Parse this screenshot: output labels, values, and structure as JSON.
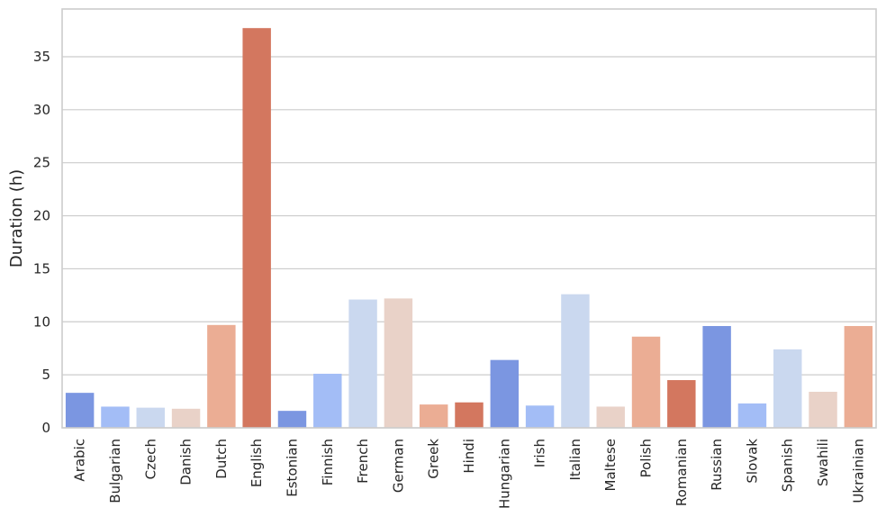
{
  "chart_data": {
    "type": "bar",
    "ylabel": "Duration (h)",
    "xlabel": "",
    "ylim": [
      0,
      39.5
    ],
    "yticks": [
      0,
      5,
      10,
      15,
      20,
      25,
      30,
      35
    ],
    "grid": "horizontal",
    "categories": [
      "Arabic",
      "Bulgarian",
      "Czech",
      "Danish",
      "Dutch",
      "English",
      "Estonian",
      "Finnish",
      "French",
      "German",
      "Greek",
      "Hindi",
      "Hungarian",
      "Irish",
      "Italian",
      "Maltese",
      "Polish",
      "Romanian",
      "Russian",
      "Slovak",
      "Spanish",
      "Swahili",
      "Ukrainian"
    ],
    "values": [
      3.3,
      2.0,
      1.9,
      1.8,
      9.7,
      37.7,
      1.6,
      5.1,
      12.1,
      12.2,
      2.2,
      2.4,
      6.4,
      2.1,
      12.6,
      2.0,
      8.6,
      4.5,
      9.6,
      2.3,
      7.4,
      3.4,
      9.6
    ],
    "colors": [
      "#7b96e1",
      "#a3bdf6",
      "#cad8ef",
      "#e9d2c8",
      "#ebad94",
      "#d3775f",
      "#7b96e1",
      "#a3bdf6",
      "#cad8ef",
      "#e9d2c8",
      "#ebad94",
      "#d3775f",
      "#7b96e1",
      "#a3bdf6",
      "#cad8ef",
      "#e9d2c8",
      "#ebad94",
      "#d3775f",
      "#7b96e1",
      "#a3bdf6",
      "#cad8ef",
      "#e9d2c8",
      "#ebad94"
    ]
  }
}
